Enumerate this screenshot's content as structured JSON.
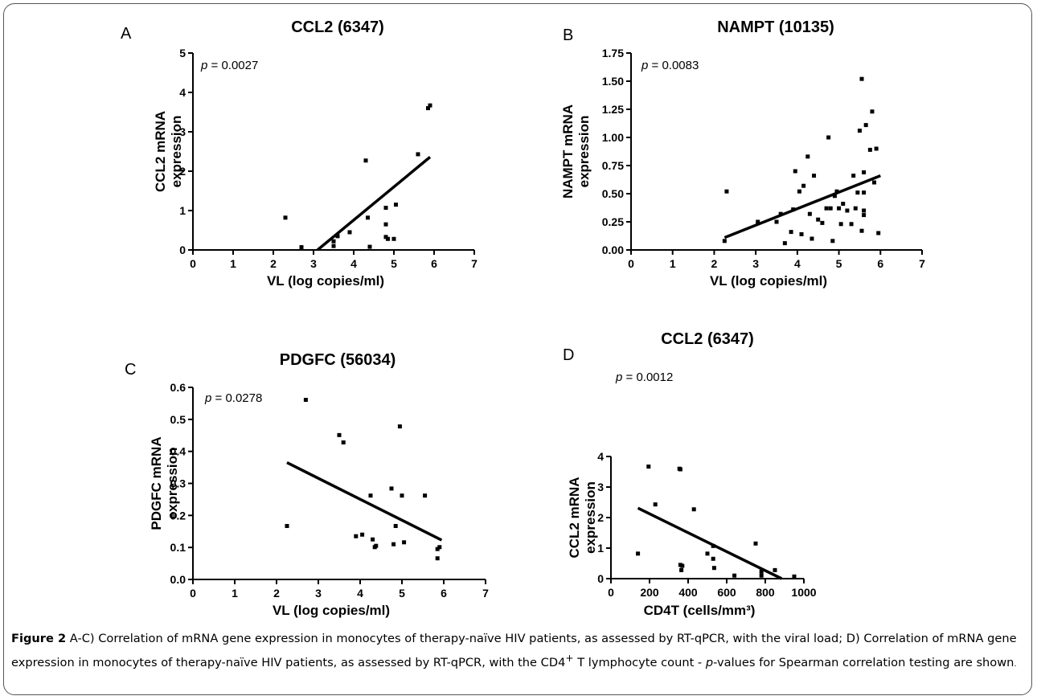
{
  "caption": {
    "label": "Figure 2",
    "part1": " A-C) Correlation of mRNA gene expression in monocytes of therapy-naïve HIV patients, as assessed by RT-qPCR, with the viral load; D) Correlation of mRNA gene expression in monocytes of therapy-naïve HIV patients, as assessed by RT-qPCR, with the CD4",
    "sup": "+",
    "part2": " T lymphocyte count - ",
    "pitalic": "p",
    "part3": "-values for Spearman correlation testing are shown",
    "endmark": "."
  },
  "chart_data": [
    {
      "panel": "A",
      "type": "scatter",
      "title": "CCL2 (6347)",
      "xlabel": "VL (log copies/ml)",
      "ylabel": [
        "CCL2 mRNA",
        "expression"
      ],
      "xlim": [
        0,
        7
      ],
      "ylim": [
        0,
        5
      ],
      "xticks": [
        "0",
        "1",
        "2",
        "3",
        "4",
        "5",
        "6",
        "7"
      ],
      "yticks": [
        "0",
        "1",
        "2",
        "3",
        "4",
        "5"
      ],
      "p_symbol": "p",
      "p_text": " = 0.0027",
      "points": [
        [
          2.3,
          0.82
        ],
        [
          2.7,
          0.07
        ],
        [
          3.5,
          0.1
        ],
        [
          3.5,
          0.22
        ],
        [
          3.6,
          0.35
        ],
        [
          3.9,
          0.45
        ],
        [
          4.3,
          2.27
        ],
        [
          4.35,
          0.82
        ],
        [
          4.4,
          0.08
        ],
        [
          4.8,
          1.07
        ],
        [
          4.8,
          0.65
        ],
        [
          4.8,
          0.33
        ],
        [
          4.85,
          0.28
        ],
        [
          5.0,
          0.28
        ],
        [
          5.05,
          1.15
        ],
        [
          5.6,
          2.43
        ],
        [
          5.85,
          3.6
        ],
        [
          5.9,
          3.67
        ]
      ],
      "fit": [
        [
          3.1,
          0.0
        ],
        [
          5.9,
          2.36
        ]
      ]
    },
    {
      "panel": "B",
      "type": "scatter",
      "title": "NAMPT (10135)",
      "xlabel": "VL (log copies/ml)",
      "ylabel": [
        "NAMPT mRNA",
        "expression"
      ],
      "xlim": [
        0,
        7
      ],
      "ylim": [
        0,
        1.75
      ],
      "xticks": [
        "0",
        "1",
        "2",
        "3",
        "4",
        "5",
        "6",
        "7"
      ],
      "yticks": [
        "0.00",
        "0.25",
        "0.50",
        "0.75",
        "1.00",
        "1.25",
        "1.50",
        "1.75"
      ],
      "p_symbol": "p",
      "p_text": " = 0.0083",
      "points": [
        [
          2.3,
          0.52
        ],
        [
          2.25,
          0.08
        ],
        [
          3.05,
          0.25
        ],
        [
          3.5,
          0.25
        ],
        [
          3.6,
          0.32
        ],
        [
          3.7,
          0.06
        ],
        [
          3.85,
          0.16
        ],
        [
          3.9,
          0.36
        ],
        [
          3.95,
          0.7
        ],
        [
          4.05,
          0.52
        ],
        [
          4.1,
          0.14
        ],
        [
          4.15,
          0.57
        ],
        [
          4.25,
          0.83
        ],
        [
          4.3,
          0.32
        ],
        [
          4.35,
          0.1
        ],
        [
          4.4,
          0.66
        ],
        [
          4.5,
          0.27
        ],
        [
          4.6,
          0.24
        ],
        [
          4.7,
          0.37
        ],
        [
          4.75,
          1.0
        ],
        [
          4.8,
          0.37
        ],
        [
          4.85,
          0.08
        ],
        [
          4.9,
          0.48
        ],
        [
          4.95,
          0.52
        ],
        [
          5.0,
          0.37
        ],
        [
          5.05,
          0.23
        ],
        [
          5.1,
          0.41
        ],
        [
          5.2,
          0.35
        ],
        [
          5.3,
          0.23
        ],
        [
          5.35,
          0.66
        ],
        [
          5.4,
          0.37
        ],
        [
          5.45,
          0.51
        ],
        [
          5.5,
          1.06
        ],
        [
          5.55,
          1.52
        ],
        [
          5.55,
          0.17
        ],
        [
          5.6,
          0.69
        ],
        [
          5.6,
          0.51
        ],
        [
          5.6,
          0.35
        ],
        [
          5.6,
          0.31
        ],
        [
          5.65,
          1.11
        ],
        [
          5.75,
          0.89
        ],
        [
          5.8,
          1.23
        ],
        [
          5.85,
          0.6
        ],
        [
          5.9,
          0.9
        ],
        [
          5.95,
          0.15
        ]
      ],
      "fit": [
        [
          2.25,
          0.11
        ],
        [
          6.0,
          0.66
        ]
      ]
    },
    {
      "panel": "C",
      "type": "scatter",
      "title": "PDGFC (56034)",
      "xlabel": "VL (log copies/ml)",
      "ylabel": [
        "PDGFC mRNA",
        "expression"
      ],
      "xlim": [
        0,
        7
      ],
      "ylim": [
        0,
        0.6
      ],
      "xticks": [
        "0",
        "1",
        "2",
        "3",
        "4",
        "5",
        "6",
        "7"
      ],
      "yticks": [
        "0.0",
        "0.1",
        "0.2",
        "0.3",
        "0.4",
        "0.5",
        "0.6"
      ],
      "p_symbol": "p",
      "p_text": " = 0.0278",
      "points": [
        [
          2.25,
          0.167
        ],
        [
          2.7,
          0.561
        ],
        [
          3.5,
          0.451
        ],
        [
          3.6,
          0.428
        ],
        [
          3.9,
          0.135
        ],
        [
          4.05,
          0.14
        ],
        [
          4.25,
          0.262
        ],
        [
          4.3,
          0.125
        ],
        [
          4.35,
          0.101
        ],
        [
          4.38,
          0.105
        ],
        [
          4.75,
          0.284
        ],
        [
          4.8,
          0.11
        ],
        [
          4.85,
          0.167
        ],
        [
          4.95,
          0.478
        ],
        [
          5.0,
          0.262
        ],
        [
          5.05,
          0.116
        ],
        [
          5.55,
          0.262
        ],
        [
          5.85,
          0.066
        ],
        [
          5.85,
          0.095
        ],
        [
          5.9,
          0.101
        ]
      ],
      "fit": [
        [
          2.25,
          0.365
        ],
        [
          5.95,
          0.123
        ]
      ]
    },
    {
      "panel": "D",
      "type": "scatter",
      "title": "CCL2 (6347)",
      "xlabel": "CD4T (cells/mm³)",
      "ylabel": [
        "CCL2 mRNA",
        "expression"
      ],
      "xlim": [
        0,
        1000
      ],
      "ylim": [
        0,
        4
      ],
      "xticks": [
        "0",
        "200",
        "400",
        "600",
        "800",
        "1000"
      ],
      "yticks": [
        "0",
        "1",
        "2",
        "3",
        "4"
      ],
      "p_symbol": "p",
      "p_text": " = 0.0012",
      "points": [
        [
          140,
          0.82
        ],
        [
          195,
          3.67
        ],
        [
          230,
          2.43
        ],
        [
          355,
          3.6
        ],
        [
          360,
          3.58
        ],
        [
          360,
          0.45
        ],
        [
          365,
          0.28
        ],
        [
          370,
          0.42
        ],
        [
          430,
          2.27
        ],
        [
          500,
          0.82
        ],
        [
          530,
          1.07
        ],
        [
          530,
          0.65
        ],
        [
          535,
          0.35
        ],
        [
          640,
          0.1
        ],
        [
          750,
          1.15
        ],
        [
          780,
          0.23
        ],
        [
          780,
          0.1
        ],
        [
          850,
          0.28
        ],
        [
          950,
          0.07
        ]
      ],
      "fit": [
        [
          140,
          2.31
        ],
        [
          885,
          0.0
        ]
      ]
    }
  ]
}
